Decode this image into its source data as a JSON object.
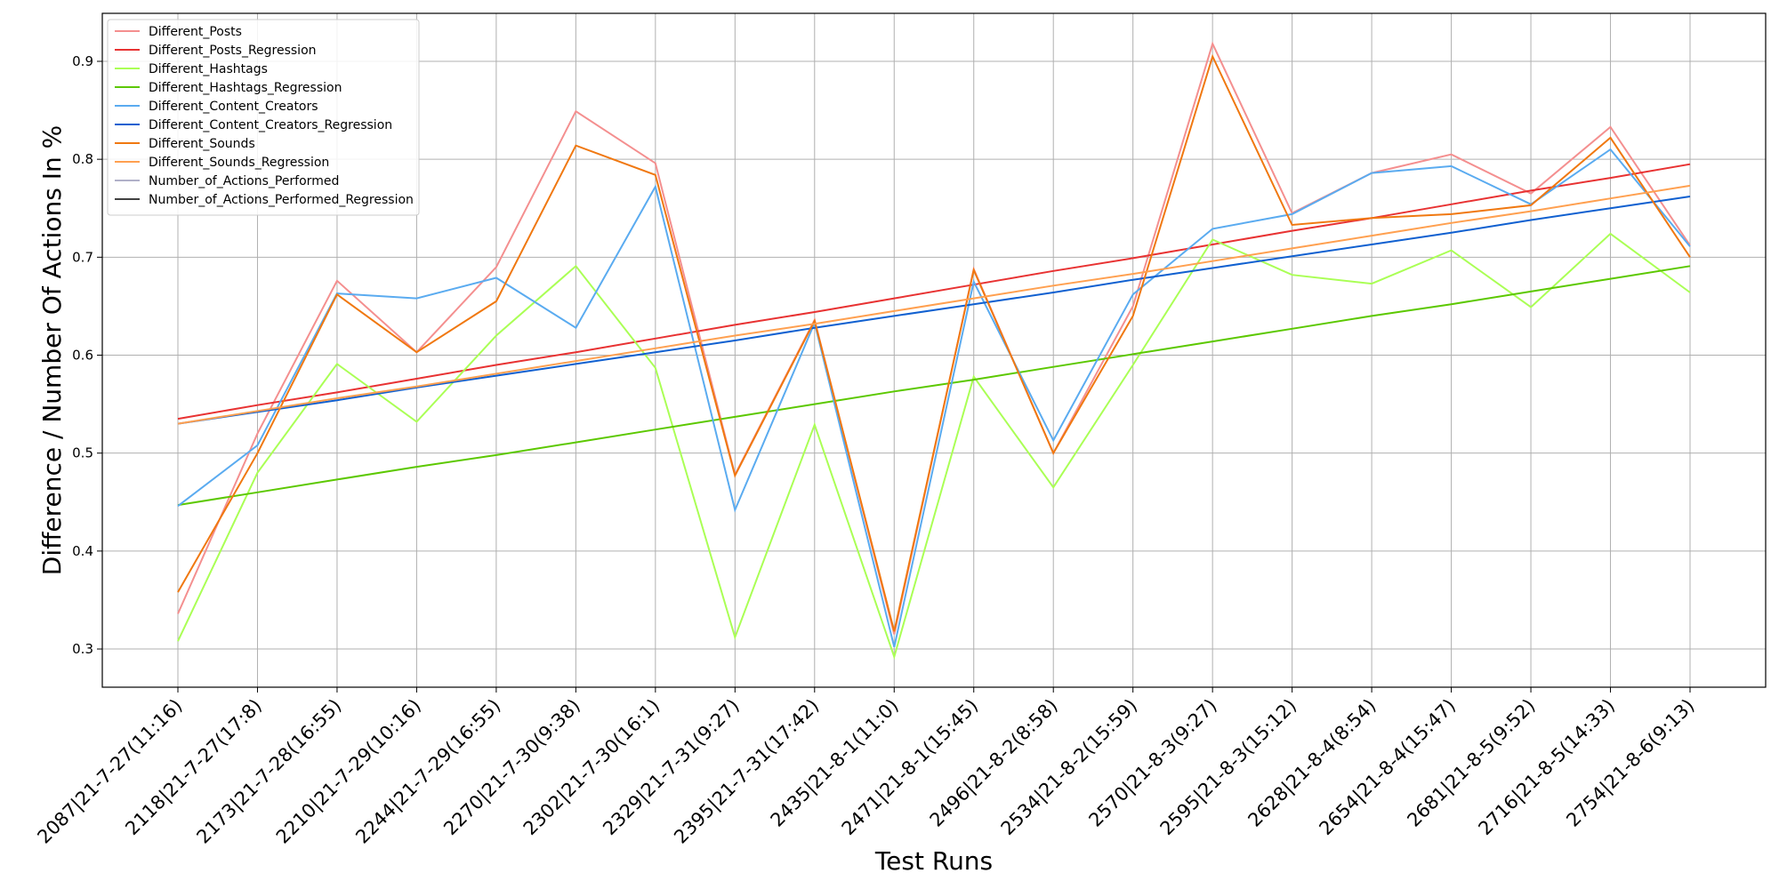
{
  "chart_data": {
    "type": "line",
    "x_label": "Test Runs",
    "y_label": "Difference / Number Of Actions In %",
    "categories": [
      "2087|21-7-27(11:16)",
      "2118|21-7-27(17:8)",
      "2173|21-7-28(16:55)",
      "2210|21-7-29(10:16)",
      "2244|21-7-29(16:55)",
      "2270|21-7-30(9:38)",
      "2302|21-7-30(16:1)",
      "2329|21-7-31(9:27)",
      "2395|21-7-31(17:42)",
      "2435|21-8-1(11:0)",
      "2471|21-8-1(15:45)",
      "2496|21-8-2(8:58)",
      "2534|21-8-2(15:59)",
      "2570|21-8-3(9:27)",
      "2595|21-8-3(15:12)",
      "2628|21-8-4(8:54)",
      "2654|21-8-4(15:47)",
      "2681|21-8-5(9:52)",
      "2716|21-8-5(14:33)",
      "2754|21-8-6(9:13)"
    ],
    "ylim": [
      0.261,
      0.949
    ],
    "yticks": [
      0.3,
      0.4,
      0.5,
      0.6,
      0.7,
      0.8,
      0.9
    ],
    "grid": true,
    "legend": "upper left",
    "series": [
      {
        "name": "Different_Posts",
        "color": "#f48f8f",
        "values": [
          0.336,
          0.52,
          0.676,
          0.603,
          0.69,
          0.849,
          0.796,
          0.478,
          0.636,
          0.315,
          0.688,
          0.5,
          0.65,
          0.918,
          0.745,
          0.786,
          0.805,
          0.765,
          0.833,
          0.712
        ]
      },
      {
        "name": "Different_Posts_Regression",
        "color": "#e83232",
        "values": [
          0.535,
          0.549,
          0.562,
          0.576,
          0.59,
          0.603,
          0.617,
          0.631,
          0.644,
          0.658,
          0.672,
          0.686,
          0.699,
          0.713,
          0.727,
          0.74,
          0.754,
          0.768,
          0.781,
          0.795
        ]
      },
      {
        "name": "Different_Hashtags",
        "color": "#aaff55",
        "values": [
          0.308,
          0.48,
          0.591,
          0.532,
          0.62,
          0.691,
          0.587,
          0.312,
          0.529,
          0.292,
          0.578,
          0.465,
          0.59,
          0.718,
          0.682,
          0.673,
          0.707,
          0.649,
          0.724,
          0.664
        ]
      },
      {
        "name": "Different_Hashtags_Regression",
        "color": "#5cc800",
        "values": [
          0.447,
          0.46,
          0.473,
          0.486,
          0.498,
          0.511,
          0.524,
          0.537,
          0.55,
          0.563,
          0.575,
          0.588,
          0.601,
          0.614,
          0.627,
          0.64,
          0.652,
          0.665,
          0.678,
          0.691
        ]
      },
      {
        "name": "Different_Content_Creators",
        "color": "#5aabf0",
        "values": [
          0.446,
          0.508,
          0.663,
          0.658,
          0.679,
          0.628,
          0.772,
          0.442,
          0.633,
          0.302,
          0.675,
          0.513,
          0.662,
          0.729,
          0.744,
          0.786,
          0.793,
          0.754,
          0.81,
          0.711
        ]
      },
      {
        "name": "Different_Content_Creators_Regression",
        "color": "#1060d0",
        "values": [
          0.53,
          0.542,
          0.554,
          0.567,
          0.579,
          0.591,
          0.603,
          0.615,
          0.628,
          0.64,
          0.652,
          0.664,
          0.677,
          0.689,
          0.701,
          0.713,
          0.725,
          0.738,
          0.75,
          0.762
        ]
      },
      {
        "name": "Different_Sounds",
        "color": "#f07810",
        "values": [
          0.358,
          0.5,
          0.662,
          0.603,
          0.655,
          0.814,
          0.784,
          0.477,
          0.635,
          0.318,
          0.687,
          0.5,
          0.64,
          0.905,
          0.733,
          0.74,
          0.744,
          0.753,
          0.822,
          0.7
        ]
      },
      {
        "name": "Different_Sounds_Regression",
        "color": "#ffa050",
        "values": [
          0.53,
          0.543,
          0.556,
          0.568,
          0.581,
          0.594,
          0.607,
          0.62,
          0.632,
          0.645,
          0.658,
          0.671,
          0.683,
          0.696,
          0.709,
          0.722,
          0.735,
          0.747,
          0.76,
          0.773
        ]
      },
      {
        "name": "Number_of_Actions_Performed",
        "color": "#b0b0c8",
        "values": [
          null,
          null,
          null,
          null,
          null,
          null,
          null,
          null,
          null,
          null,
          null,
          null,
          null,
          null,
          null,
          null,
          null,
          null,
          null,
          null
        ]
      },
      {
        "name": "Number_of_Actions_Performed_Regression",
        "color": "#404040",
        "values": [
          null,
          null,
          null,
          null,
          null,
          null,
          null,
          null,
          null,
          null,
          null,
          null,
          null,
          null,
          null,
          null,
          null,
          null,
          null,
          null
        ]
      }
    ]
  }
}
